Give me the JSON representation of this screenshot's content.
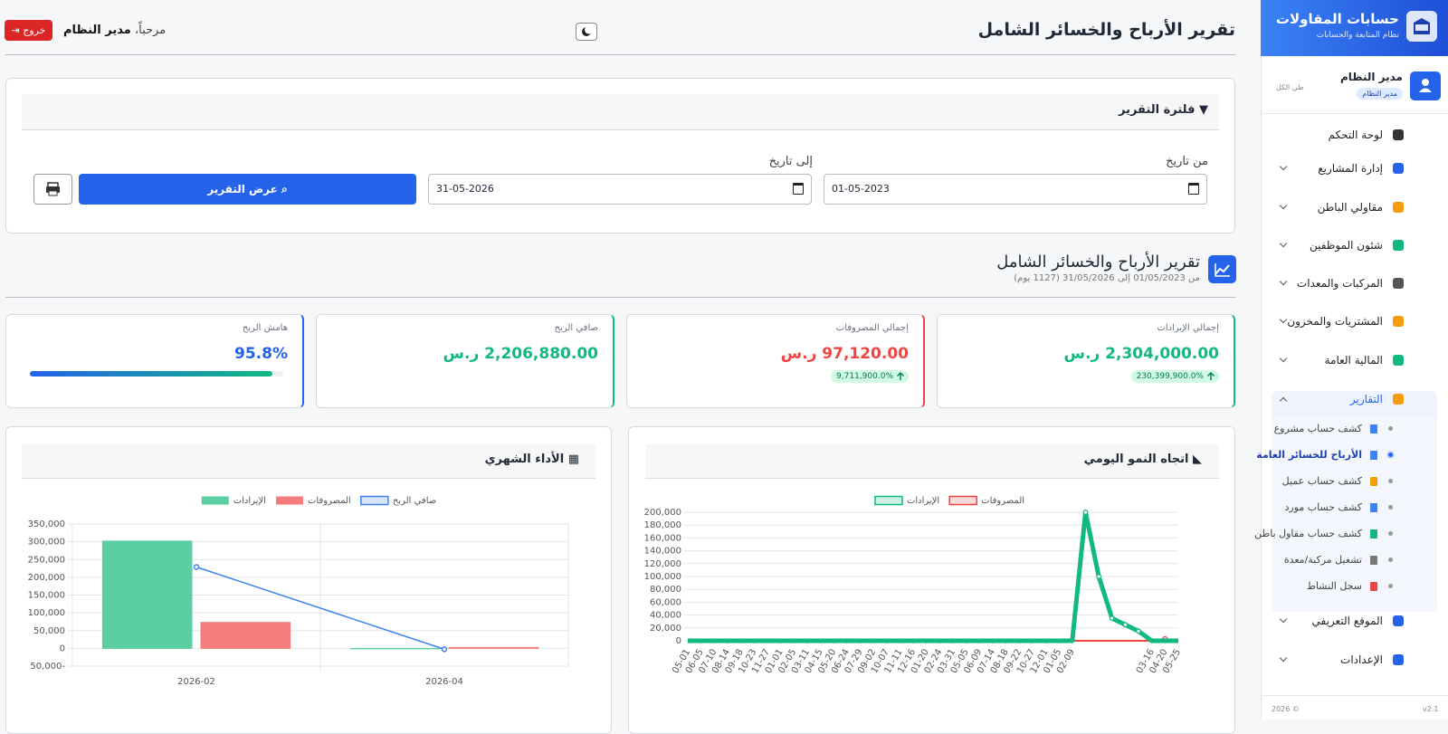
{
  "sidebar": {
    "brand": "حسابات المقاولات",
    "tagline": "نظام المتابعة والحسابات",
    "user_name": "مدير النظام",
    "user_role": "مدير النظام",
    "collapse_all": "طي الكل",
    "menu": [
      "لوحة التحكم",
      "إدارة المشاريع",
      "مقاولي الباطن",
      "شئون الموظفين",
      "المركبات والمعدات",
      "المشتريات والمخزون",
      "المالية العامة",
      "التقارير",
      "الموقع التعريفي",
      "الإعدادات"
    ],
    "submenu": [
      "كشف حساب مشروع",
      "الأرباح للخسائر العامة",
      "كشف حساب عميل",
      "كشف حساب مورد",
      "كشف حساب مقاول باطن",
      "تشغيل مركبة/معدة",
      "سجل النشاط"
    ],
    "version": "v2.1",
    "copyright": "2026 ©"
  },
  "header": {
    "title": "تقرير الأرباح والخسائر الشامل",
    "welcome": "مرحباً،",
    "user": "مدير النظام",
    "logout": "خروج"
  },
  "filter": {
    "title": "فلترة التقرير",
    "from_label": "من تاريخ",
    "from_value": "01-05-2023",
    "to_label": "إلى تاريخ",
    "to_value": "31-05-2026",
    "submit": "عرض التقرير"
  },
  "report": {
    "title": "تقرير الأرباح والخسائر الشامل",
    "period": "من 01/05/2023 إلى 31/05/2026 (1127 يوم)"
  },
  "cards": [
    {
      "label": "إجمالي الإيرادات",
      "value": "2,304,000.00 ر.س",
      "change": "230,399,900.0%"
    },
    {
      "label": "إجمالي المصروفات",
      "value": "97,120.00 ر.س",
      "change": "9,711,900.0%"
    },
    {
      "label": "صافي الربح",
      "value": "2,206,880.00 ر.س"
    },
    {
      "label": "هامش الربح",
      "value": "95.8%"
    }
  ],
  "chart_data": [
    {
      "type": "bar",
      "title": "الأداء الشهري",
      "categories": [
        "2026-02",
        "2026-04"
      ],
      "series": [
        {
          "name": "الإيرادات",
          "color": "#5ccfa2",
          "values": [
            302000,
            0
          ]
        },
        {
          "name": "المصروفات",
          "color": "#f47c7c",
          "values": [
            73000,
            2500
          ]
        },
        {
          "name": "صافي الربح",
          "color": "#3b82f6",
          "type": "line",
          "values": [
            229000,
            -2500
          ]
        }
      ],
      "ylim": [
        -50000,
        350000
      ],
      "yticks": [
        {
          "value": -50000,
          "label": "50,000-"
        },
        0,
        {
          "value": 50000,
          "label": "50,000"
        },
        {
          "value": 100000,
          "label": "100,000"
        },
        {
          "value": 150000,
          "label": "150,000"
        },
        {
          "value": 200000,
          "label": "200,000"
        },
        {
          "value": 250000,
          "label": "250,000"
        },
        {
          "value": 300000,
          "label": "300,000"
        },
        {
          "value": 350000,
          "label": "350,000"
        }
      ],
      "grid": true
    },
    {
      "type": "line",
      "title": "اتجاه النمو اليومي",
      "categories": [
        "05-01",
        "06-05",
        "07-10",
        "08-14",
        "09-18",
        "10-23",
        "11-27",
        "01-01",
        "02-05",
        "03-11",
        "04-15",
        "05-20",
        "06-24",
        "07-29",
        "09-02",
        "10-07",
        "11-11",
        "12-16",
        "01-20",
        "02-24",
        "03-31",
        "05-05",
        "06-09",
        "07-14",
        "08-18",
        "09-22",
        "10-27",
        "12-01",
        "01-05",
        "02-09",
        null,
        null,
        null,
        null,
        null,
        "03-16",
        "04-20",
        "05-25"
      ],
      "series": [
        {
          "name": "الإيرادات",
          "color": "#10b981",
          "values": [
            0,
            0,
            0,
            0,
            0,
            0,
            0,
            0,
            0,
            0,
            0,
            0,
            0,
            0,
            0,
            0,
            0,
            0,
            0,
            0,
            0,
            0,
            0,
            0,
            0,
            0,
            0,
            0,
            0,
            0,
            200000,
            100000,
            35000,
            25000,
            15000,
            0,
            0,
            0
          ]
        },
        {
          "name": "المصروفات",
          "color": "#ef4444",
          "values": [
            0,
            0,
            0,
            0,
            0,
            0,
            0,
            0,
            0,
            0,
            0,
            0,
            0,
            0,
            0,
            0,
            0,
            0,
            0,
            0,
            0,
            0,
            0,
            0,
            0,
            0,
            0,
            0,
            0,
            0,
            0,
            0,
            0,
            0,
            0,
            0,
            3000,
            0
          ]
        }
      ],
      "ylim": [
        0,
        200000
      ],
      "yticks": [
        0,
        {
          "value": 20000,
          "label": "20,000"
        },
        {
          "value": 40000,
          "label": "40,000"
        },
        {
          "value": 60000,
          "label": "60,000"
        },
        {
          "value": 80000,
          "label": "80,000"
        },
        {
          "value": 100000,
          "label": "100,000"
        },
        {
          "value": 120000,
          "label": "120,000"
        },
        {
          "value": 140000,
          "label": "140,000"
        },
        {
          "value": 160000,
          "label": "160,000"
        },
        {
          "value": 180000,
          "label": "180,000"
        },
        {
          "value": 200000,
          "label": "200,000"
        }
      ],
      "grid": true
    }
  ]
}
